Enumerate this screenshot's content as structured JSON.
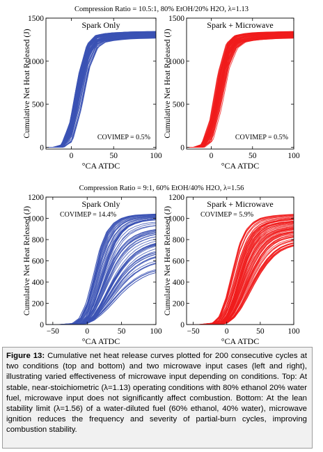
{
  "figure": {
    "top_title": "Compression Ratio = 10.5:1, 80% EtOH/20% H2O, λ=1.13",
    "bottom_title": "Compression Ratio = 9:1, 60% EtOH/40% H2O, λ=1.56"
  },
  "caption": {
    "label": "Figure 13:",
    "text": "Cumulative net heat release curves plotted for 200 consecutive cycles at two conditions (top and bottom) and two microwave input cases (left and right), illustrating varied effectiveness of microwave input depending on conditions. Top: At stable, near-stoichiometric (λ=1.13) operating conditions with 80% ethanol 20% water fuel, microwave input does not significantly affect combustion. Bottom: At the lean stability limit (λ=1.56) of a water-diluted fuel (60% ethanol, 40% water), microwave ignition reduces the frequency and severity of partial-burn cycles, improving combustion stability."
  },
  "colors": {
    "spark_only": "#3b52b4",
    "spark_microwave": "#f01c1c"
  },
  "chart_data": [
    {
      "type": "line",
      "condition": "top",
      "panel": "Spark Only",
      "annotation": "COVIMEP = 0.5%",
      "xlabel": "°CA ATDC",
      "ylabel": "Cumulative Net Heat Released (J)",
      "xlim": [
        -30,
        100
      ],
      "ylim": [
        -20,
        1500
      ],
      "xticks": [
        0,
        50,
        100
      ],
      "yticks": [
        0,
        500,
        1000,
        1500
      ],
      "cycles": 200,
      "color": "#3b52b4",
      "series": [
        {
          "x": [
            -30,
            -20,
            -10,
            0,
            10,
            20,
            30,
            40,
            50,
            60,
            70,
            80,
            90,
            100
          ],
          "values": [
            0,
            0,
            10,
            150,
            600,
            1050,
            1200,
            1235,
            1255,
            1265,
            1270,
            1275,
            1278,
            1280
          ]
        },
        {
          "x": [
            -30,
            -20,
            -10,
            0,
            10,
            20,
            30,
            40,
            50,
            60,
            70,
            80,
            90,
            100
          ],
          "values": [
            0,
            0,
            30,
            300,
            850,
            1200,
            1300,
            1320,
            1330,
            1335,
            1340,
            1342,
            1344,
            1345
          ]
        },
        {
          "x": [
            -30,
            -20,
            -10,
            0,
            10,
            20,
            30,
            40,
            50,
            60,
            70,
            80,
            90,
            100
          ],
          "values": [
            0,
            0,
            0,
            60,
            400,
            900,
            1150,
            1220,
            1240,
            1250,
            1258,
            1262,
            1265,
            1268
          ]
        }
      ]
    },
    {
      "type": "line",
      "condition": "top",
      "panel": "Spark + Microwave",
      "annotation": "COVIMEP = 0.5%",
      "xlabel": "°CA ATDC",
      "ylabel": "Cumulative Net Heat Released (J)",
      "xlim": [
        -30,
        100
      ],
      "ylim": [
        -20,
        1500
      ],
      "xticks": [
        0,
        50,
        100
      ],
      "yticks": [
        0,
        500,
        1000,
        1500
      ],
      "cycles": 200,
      "color": "#f01c1c",
      "series": [
        {
          "x": [
            -30,
            -20,
            -10,
            0,
            10,
            20,
            30,
            40,
            50,
            60,
            70,
            80,
            90,
            100
          ],
          "values": [
            0,
            0,
            12,
            170,
            620,
            1060,
            1200,
            1235,
            1255,
            1265,
            1270,
            1274,
            1277,
            1280
          ]
        },
        {
          "x": [
            -30,
            -20,
            -10,
            0,
            10,
            20,
            30,
            40,
            50,
            60,
            70,
            80,
            90,
            100
          ],
          "values": [
            0,
            0,
            35,
            320,
            870,
            1210,
            1300,
            1320,
            1330,
            1335,
            1338,
            1341,
            1343,
            1345
          ]
        },
        {
          "x": [
            -30,
            -20,
            -10,
            0,
            10,
            20,
            30,
            40,
            50,
            60,
            70,
            80,
            90,
            100
          ],
          "values": [
            0,
            0,
            0,
            70,
            420,
            910,
            1150,
            1220,
            1240,
            1250,
            1257,
            1262,
            1265,
            1268
          ]
        }
      ]
    },
    {
      "type": "line",
      "condition": "bottom",
      "panel": "Spark Only",
      "annotation": "COVIMEP = 14.4%",
      "xlabel": "°CA ATDC",
      "ylabel": "Cumulative Net Heat Released (J)",
      "xlim": [
        -60,
        100
      ],
      "ylim": [
        0,
        1200
      ],
      "xticks": [
        -50,
        0,
        50,
        100
      ],
      "yticks": [
        0,
        200,
        400,
        600,
        800,
        1000,
        1200
      ],
      "cycles": 200,
      "color": "#3b52b4",
      "series": [
        {
          "x": [
            -60,
            -40,
            -20,
            -10,
            0,
            10,
            20,
            30,
            40,
            50,
            60,
            70,
            80,
            90,
            100
          ],
          "values": [
            0,
            0,
            10,
            60,
            200,
            450,
            720,
            880,
            960,
            1000,
            1020,
            1030,
            1035,
            1038,
            1040
          ]
        },
        {
          "x": [
            -60,
            -40,
            -20,
            -10,
            0,
            10,
            20,
            30,
            40,
            50,
            60,
            70,
            80,
            90,
            100
          ],
          "values": [
            0,
            0,
            0,
            10,
            60,
            200,
            400,
            600,
            760,
            860,
            920,
            950,
            970,
            980,
            985
          ]
        },
        {
          "x": [
            -60,
            -40,
            -20,
            -10,
            0,
            10,
            20,
            30,
            40,
            50,
            60,
            70,
            80,
            90,
            100
          ],
          "values": [
            0,
            0,
            0,
            0,
            20,
            80,
            180,
            300,
            420,
            520,
            600,
            660,
            700,
            730,
            750
          ]
        },
        {
          "x": [
            -60,
            -40,
            -20,
            -10,
            0,
            10,
            20,
            30,
            40,
            50,
            60,
            70,
            80,
            90,
            100
          ],
          "values": [
            0,
            0,
            0,
            0,
            10,
            40,
            90,
            150,
            220,
            290,
            350,
            400,
            440,
            470,
            490
          ]
        }
      ]
    },
    {
      "type": "line",
      "condition": "bottom",
      "panel": "Spark + Microwave",
      "annotation": "COVIMEP = 5.9%",
      "xlabel": "°CA ATDC",
      "ylabel": "Cumulative Net Heat Released (J)",
      "xlim": [
        -60,
        100
      ],
      "ylim": [
        0,
        1200
      ],
      "xticks": [
        -50,
        0,
        50,
        100
      ],
      "yticks": [
        0,
        200,
        400,
        600,
        800,
        1000,
        1200
      ],
      "cycles": 200,
      "color": "#f01c1c",
      "series": [
        {
          "x": [
            -60,
            -40,
            -20,
            -10,
            0,
            10,
            20,
            30,
            40,
            50,
            60,
            70,
            80,
            90,
            100
          ],
          "values": [
            0,
            0,
            15,
            80,
            260,
            520,
            770,
            900,
            965,
            1000,
            1015,
            1025,
            1030,
            1035,
            1038
          ]
        },
        {
          "x": [
            -60,
            -40,
            -20,
            -10,
            0,
            10,
            20,
            30,
            40,
            50,
            60,
            70,
            80,
            90,
            100
          ],
          "values": [
            0,
            0,
            0,
            15,
            90,
            260,
            480,
            680,
            810,
            880,
            920,
            940,
            955,
            962,
            968
          ]
        },
        {
          "x": [
            -60,
            -40,
            -20,
            -10,
            0,
            10,
            20,
            30,
            40,
            50,
            60,
            70,
            80,
            90,
            100
          ],
          "values": [
            0,
            0,
            0,
            0,
            30,
            120,
            260,
            420,
            560,
            670,
            750,
            800,
            830,
            845,
            855
          ]
        },
        {
          "x": [
            -60,
            -40,
            -20,
            -10,
            0,
            10,
            20,
            30,
            40,
            50,
            60,
            70,
            80,
            90,
            100
          ],
          "values": [
            0,
            0,
            0,
            0,
            15,
            60,
            140,
            250,
            370,
            480,
            570,
            640,
            690,
            720,
            740
          ]
        }
      ]
    }
  ]
}
